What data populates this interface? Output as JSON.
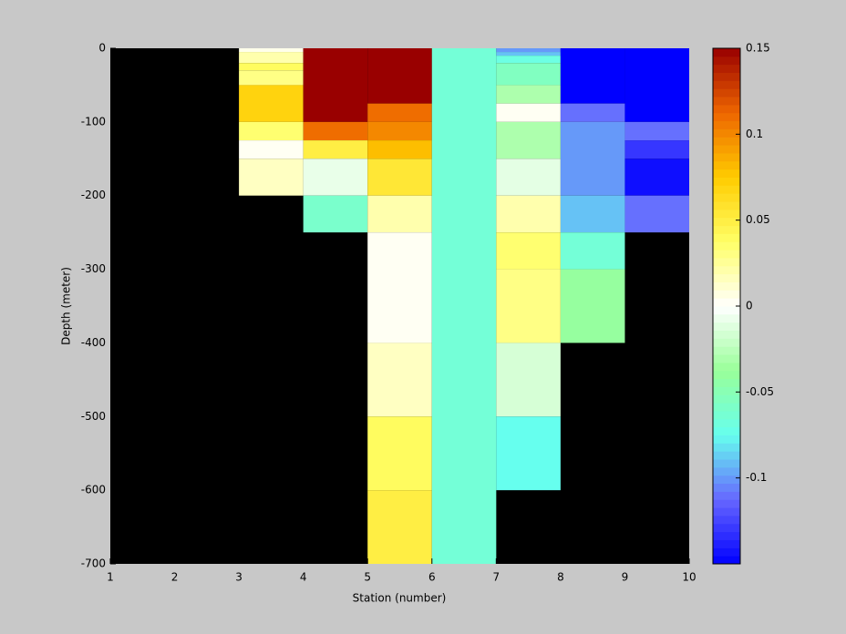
{
  "chart_data": {
    "type": "heatmap",
    "x_label": "Station (number)",
    "y_label": "Depth (meter)",
    "xlim": [
      1,
      10
    ],
    "xticks": [
      1,
      2,
      3,
      4,
      5,
      6,
      7,
      8,
      9,
      10
    ],
    "ylim": [
      -700,
      0
    ],
    "yticks": [
      0,
      -100,
      -200,
      -300,
      -400,
      -500,
      -600,
      -700
    ],
    "background": "#000000",
    "clim": [
      -0.15,
      0.15
    ],
    "cticks": [
      0.15,
      0.1,
      0.05,
      0,
      -0.05,
      -0.1
    ],
    "colormap": [
      "#0000ff",
      "#6666ff",
      "#66ffee",
      "#99ff99",
      "#ffffff",
      "#ffff66",
      "#ffcc00",
      "#ee6600",
      "#990000"
    ],
    "cells": [
      {
        "x": [
          3,
          4
        ],
        "y": [
          0,
          -5
        ],
        "value": 0.005
      },
      {
        "x": [
          3,
          4
        ],
        "y": [
          -5,
          -20
        ],
        "value": 0.02
      },
      {
        "x": [
          3,
          4
        ],
        "y": [
          -20,
          -30
        ],
        "value": 0.04
      },
      {
        "x": [
          3,
          4
        ],
        "y": [
          -30,
          -50
        ],
        "value": 0.03
      },
      {
        "x": [
          3,
          4
        ],
        "y": [
          -50,
          -100
        ],
        "value": 0.07
      },
      {
        "x": [
          3,
          4
        ],
        "y": [
          -100,
          -125
        ],
        "value": 0.035
      },
      {
        "x": [
          3,
          4
        ],
        "y": [
          -125,
          -150
        ],
        "value": 0.003
      },
      {
        "x": [
          3,
          4
        ],
        "y": [
          -150,
          -200
        ],
        "value": 0.015
      },
      {
        "x": [
          4,
          5
        ],
        "y": [
          0,
          -100
        ],
        "value": 0.15
      },
      {
        "x": [
          4,
          5
        ],
        "y": [
          -100,
          -125
        ],
        "value": 0.11
      },
      {
        "x": [
          4,
          5
        ],
        "y": [
          -125,
          -150
        ],
        "value": 0.05
      },
      {
        "x": [
          4,
          5
        ],
        "y": [
          -150,
          -200
        ],
        "value": -0.008
      },
      {
        "x": [
          4,
          5
        ],
        "y": [
          -200,
          -250
        ],
        "value": -0.06
      },
      {
        "x": [
          5,
          6
        ],
        "y": [
          0,
          -75
        ],
        "value": 0.15
      },
      {
        "x": [
          5,
          6
        ],
        "y": [
          -75,
          -100
        ],
        "value": 0.11
      },
      {
        "x": [
          5,
          6
        ],
        "y": [
          -100,
          -125
        ],
        "value": 0.1
      },
      {
        "x": [
          5,
          6
        ],
        "y": [
          -125,
          -150
        ],
        "value": 0.08
      },
      {
        "x": [
          5,
          6
        ],
        "y": [
          -150,
          -200
        ],
        "value": 0.055
      },
      {
        "x": [
          5,
          6
        ],
        "y": [
          -200,
          -250
        ],
        "value": 0.02
      },
      {
        "x": [
          5,
          6
        ],
        "y": [
          -250,
          -400
        ],
        "value": 0.003
      },
      {
        "x": [
          5,
          6
        ],
        "y": [
          -400,
          -500
        ],
        "value": 0.015
      },
      {
        "x": [
          5,
          6
        ],
        "y": [
          -500,
          -600
        ],
        "value": 0.04
      },
      {
        "x": [
          5,
          6
        ],
        "y": [
          -600,
          -700
        ],
        "value": 0.05
      },
      {
        "x": [
          6,
          7
        ],
        "y": [
          0,
          -700
        ],
        "value": -0.065
      },
      {
        "x": [
          7,
          8
        ],
        "y": [
          0,
          -5
        ],
        "value": -0.1
      },
      {
        "x": [
          7,
          8
        ],
        "y": [
          -5,
          -10
        ],
        "value": -0.09
      },
      {
        "x": [
          7,
          8
        ],
        "y": [
          -10,
          -20
        ],
        "value": -0.07
      },
      {
        "x": [
          7,
          8
        ],
        "y": [
          -20,
          -50
        ],
        "value": -0.055
      },
      {
        "x": [
          7,
          8
        ],
        "y": [
          -50,
          -75
        ],
        "value": -0.03
      },
      {
        "x": [
          7,
          8
        ],
        "y": [
          -75,
          -100
        ],
        "value": 0.003
      },
      {
        "x": [
          7,
          8
        ],
        "y": [
          -100,
          -150
        ],
        "value": -0.03
      },
      {
        "x": [
          7,
          8
        ],
        "y": [
          -150,
          -200
        ],
        "value": -0.01
      },
      {
        "x": [
          7,
          8
        ],
        "y": [
          -200,
          -250
        ],
        "value": 0.02
      },
      {
        "x": [
          7,
          8
        ],
        "y": [
          -250,
          -300
        ],
        "value": 0.035
      },
      {
        "x": [
          7,
          8
        ],
        "y": [
          -300,
          -400
        ],
        "value": 0.03
      },
      {
        "x": [
          7,
          8
        ],
        "y": [
          -400,
          -500
        ],
        "value": -0.015
      },
      {
        "x": [
          7,
          8
        ],
        "y": [
          -500,
          -600
        ],
        "value": -0.075
      },
      {
        "x": [
          8,
          9
        ],
        "y": [
          0,
          -75
        ],
        "value": -0.15
      },
      {
        "x": [
          8,
          9
        ],
        "y": [
          -75,
          -100
        ],
        "value": -0.11
      },
      {
        "x": [
          8,
          9
        ],
        "y": [
          -100,
          -200
        ],
        "value": -0.1
      },
      {
        "x": [
          8,
          9
        ],
        "y": [
          -200,
          -250
        ],
        "value": -0.09
      },
      {
        "x": [
          8,
          9
        ],
        "y": [
          -250,
          -300
        ],
        "value": -0.065
      },
      {
        "x": [
          8,
          9
        ],
        "y": [
          -300,
          -400
        ],
        "value": -0.04
      },
      {
        "x": [
          9,
          10
        ],
        "y": [
          0,
          -100
        ],
        "value": -0.15
      },
      {
        "x": [
          9,
          10
        ],
        "y": [
          -100,
          -125
        ],
        "value": -0.11
      },
      {
        "x": [
          9,
          10
        ],
        "y": [
          -125,
          -150
        ],
        "value": -0.13
      },
      {
        "x": [
          9,
          10
        ],
        "y": [
          -150,
          -200
        ],
        "value": -0.145
      },
      {
        "x": [
          9,
          10
        ],
        "y": [
          -200,
          -250
        ],
        "value": -0.11
      }
    ]
  }
}
